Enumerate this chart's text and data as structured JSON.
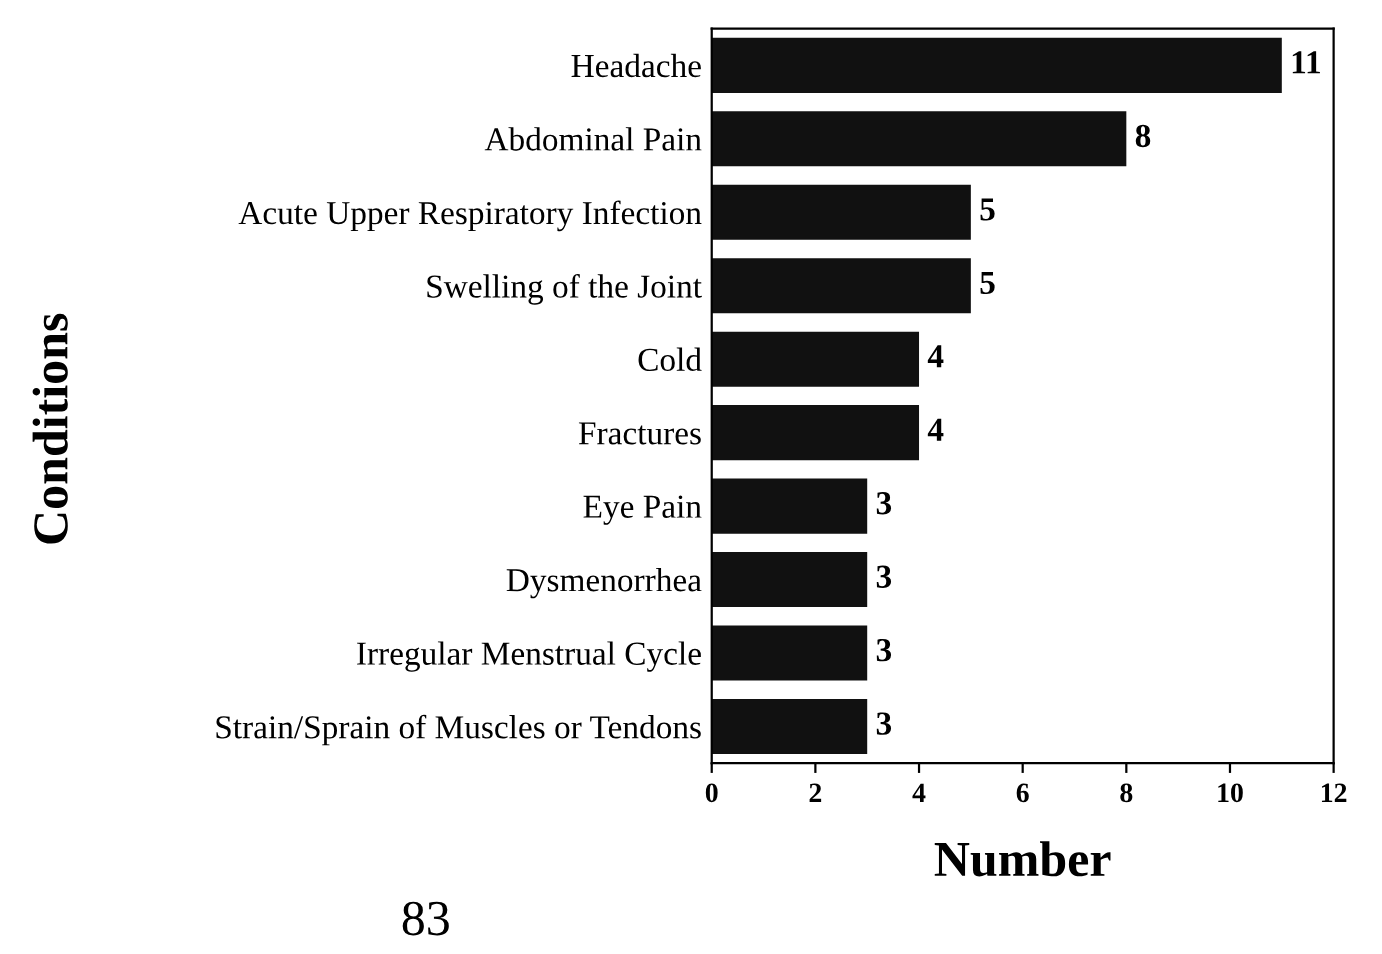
{
  "chart_data": {
    "type": "bar",
    "orientation": "horizontal",
    "xlabel": "Number",
    "ylabel": "Conditions",
    "categories": [
      "Headache",
      "Abdominal Pain",
      "Acute Upper Respiratory Infection",
      "Swelling of the Joint",
      "Cold",
      "Fractures",
      "Eye Pain",
      "Dysmenorrhea",
      "Irregular Menstrual Cycle",
      "Strain/Sprain of Muscles or Tendons"
    ],
    "values": [
      11,
      8,
      5,
      5,
      4,
      4,
      3,
      3,
      3,
      3
    ],
    "color": "#111111",
    "data_labels": true,
    "xlim": [
      0,
      12
    ],
    "xticks": [
      0,
      2,
      4,
      6,
      8,
      10,
      12
    ],
    "grid": false,
    "legend": false,
    "annotations": [
      "83"
    ]
  }
}
